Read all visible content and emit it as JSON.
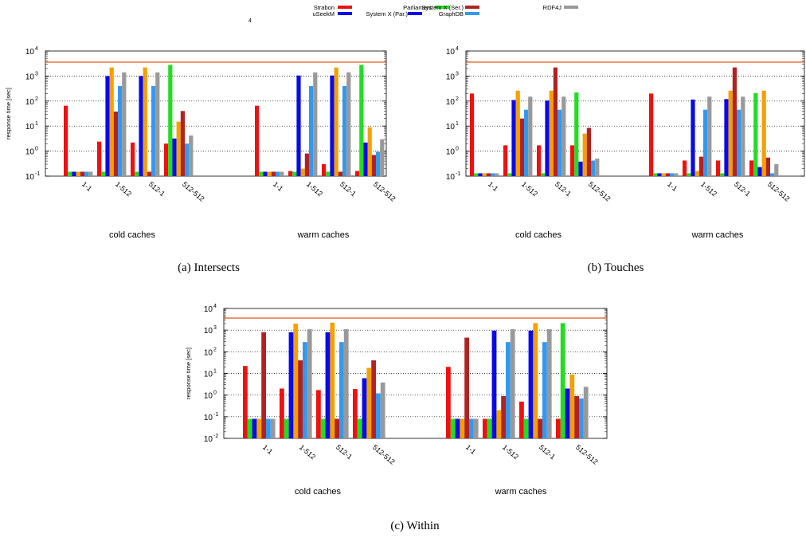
{
  "stray_mark": "4",
  "legend": [
    {
      "name": "Strabon",
      "color": "#ee1111"
    },
    {
      "name": "uSeekM",
      "color": "#0a0ae6"
    },
    {
      "name": "Parliament",
      "color": "#22dd22"
    },
    {
      "name": "System X (Par.)",
      "color": "#0a0ae6"
    },
    {
      "name": "System X (Ser.)",
      "color": "#b22222"
    },
    {
      "name": "GraphDB",
      "color": "#3399ee"
    },
    {
      "name": "RDF4J",
      "color": "#999999"
    }
  ],
  "chart_data": [
    {
      "type": "bar",
      "caption": "(a)  Intersects",
      "ylabel": "response time [sec]",
      "yscale": "log",
      "ylim": [
        0.1,
        10000
      ],
      "yticks": [
        {
          "v": 0.1,
          "b": "10",
          "e": "-1"
        },
        {
          "v": 1,
          "b": "10",
          "e": "0"
        },
        {
          "v": 10,
          "b": "10",
          "e": "1"
        },
        {
          "v": 100,
          "b": "10",
          "e": "2"
        },
        {
          "v": 1000,
          "b": "10",
          "e": "3"
        },
        {
          "v": 10000,
          "b": "10",
          "e": "4"
        }
      ],
      "timeout": 3600,
      "grid": true,
      "groups": [
        "cold caches",
        "warm caches"
      ],
      "categories": [
        "1-1",
        "1-512",
        "512-1",
        "512-512"
      ],
      "series": [
        {
          "name": "Strabon",
          "color": "#ee1111",
          "values": [
            [
              65,
              2.4,
              2.2,
              2
            ],
            [
              65,
              0.16,
              0.3,
              0.16
            ]
          ]
        },
        {
          "name": "Parliament",
          "color": "#22dd22",
          "values": [
            [
              0.15,
              0.15,
              0.15,
              2800
            ],
            [
              0.15,
              0.15,
              0.15,
              2800
            ]
          ]
        },
        {
          "name": "uSeekM",
          "color": "#0a0ae6",
          "values": [
            [
              0.15,
              1000,
              1000,
              3.2
            ],
            [
              0.15,
              1050,
              1050,
              2.2
            ]
          ]
        },
        {
          "name": "System X (Par.)",
          "color": "#f5a000",
          "values": [
            [
              0.15,
              2200,
              2200,
              15
            ],
            [
              0.15,
              0.2,
              2200,
              9
            ]
          ]
        },
        {
          "name": "System X (Ser.)",
          "color": "#b22222",
          "values": [
            [
              0.15,
              38,
              0.15,
              40
            ],
            [
              0.15,
              0.8,
              0.15,
              0.7
            ]
          ]
        },
        {
          "name": "GraphDB",
          "color": "#3399ee",
          "values": [
            [
              0.15,
              400,
              400,
              2
            ],
            [
              0.15,
              400,
              400,
              0.95
            ]
          ]
        },
        {
          "name": "RDF4J",
          "color": "#999999",
          "values": [
            [
              0.15,
              1400,
              1400,
              4.2
            ],
            [
              0.15,
              1400,
              1400,
              3
            ]
          ]
        }
      ]
    },
    {
      "type": "bar",
      "caption": "(b)  Touches",
      "ylabel": "",
      "yscale": "log",
      "ylim": [
        0.1,
        10000
      ],
      "yticks": [
        {
          "v": 0.1,
          "b": "10",
          "e": "-1"
        },
        {
          "v": 1,
          "b": "10",
          "e": "0"
        },
        {
          "v": 10,
          "b": "10",
          "e": "1"
        },
        {
          "v": 100,
          "b": "10",
          "e": "2"
        },
        {
          "v": 1000,
          "b": "10",
          "e": "3"
        },
        {
          "v": 10000,
          "b": "10",
          "e": "4"
        }
      ],
      "timeout": 3600,
      "grid": true,
      "groups": [
        "cold caches",
        "warm caches"
      ],
      "categories": [
        "1-1",
        "1-512",
        "512-1",
        "512-512"
      ],
      "series": [
        {
          "name": "Strabon",
          "color": "#ee1111",
          "values": [
            [
              200,
              1.7,
              1.7,
              1.7
            ],
            [
              200,
              0.42,
              0.42,
              0.42
            ]
          ]
        },
        {
          "name": "Parliament",
          "color": "#22dd22",
          "values": [
            [
              0.13,
              0.13,
              0.13,
              220
            ],
            [
              0.13,
              0.13,
              0.13,
              210
            ]
          ]
        },
        {
          "name": "uSeekM",
          "color": "#0a0ae6",
          "values": [
            [
              0.13,
              110,
              105,
              0.38
            ],
            [
              0.13,
              115,
              120,
              0.23
            ]
          ]
        },
        {
          "name": "System X (Par.)",
          "color": "#f5a000",
          "values": [
            [
              0.13,
              260,
              260,
              5
            ],
            [
              0.13,
              0.16,
              260,
              260
            ]
          ]
        },
        {
          "name": "System X (Ser.)",
          "color": "#b22222",
          "values": [
            [
              0.13,
              20,
              2200,
              8.5
            ],
            [
              0.13,
              0.6,
              2200,
              0.55
            ]
          ]
        },
        {
          "name": "GraphDB",
          "color": "#3399ee",
          "values": [
            [
              0.13,
              45,
              45,
              0.42
            ],
            [
              0.13,
              45,
              45,
              0.13
            ]
          ]
        },
        {
          "name": "RDF4J",
          "color": "#999999",
          "values": [
            [
              0.13,
              150,
              150,
              0.5
            ],
            [
              0.13,
              150,
              150,
              0.3
            ]
          ]
        }
      ]
    },
    {
      "type": "bar",
      "caption": "(c)  Within",
      "ylabel": "response time [sec]",
      "yscale": "log",
      "ylim": [
        0.01,
        10000
      ],
      "yticks": [
        {
          "v": 0.01,
          "b": "10",
          "e": "-2"
        },
        {
          "v": 0.1,
          "b": "10",
          "e": "-1"
        },
        {
          "v": 1,
          "b": "10",
          "e": "0"
        },
        {
          "v": 10,
          "b": "10",
          "e": "1"
        },
        {
          "v": 100,
          "b": "10",
          "e": "2"
        },
        {
          "v": 1000,
          "b": "10",
          "e": "3"
        },
        {
          "v": 10000,
          "b": "10",
          "e": "4"
        }
      ],
      "timeout": 3600,
      "grid": true,
      "groups": [
        "cold caches",
        "warm caches"
      ],
      "categories": [
        "1-1",
        "1-512",
        "512-1",
        "512-512"
      ],
      "series": [
        {
          "name": "Strabon",
          "color": "#ee1111",
          "values": [
            [
              22,
              2,
              1.7,
              1.9
            ],
            [
              20,
              0.08,
              0.5,
              0.08
            ]
          ]
        },
        {
          "name": "Parliament",
          "color": "#22dd22",
          "values": [
            [
              0.08,
              0.08,
              0.08,
              0.08
            ],
            [
              0.08,
              0.08,
              0.08,
              2100
            ]
          ]
        },
        {
          "name": "uSeekM",
          "color": "#0a0ae6",
          "values": [
            [
              0.08,
              800,
              800,
              6
            ],
            [
              0.08,
              950,
              950,
              2
            ]
          ]
        },
        {
          "name": "System X (Par.)",
          "color": "#f5a000",
          "values": [
            [
              0.08,
              2000,
              2200,
              18
            ],
            [
              0.08,
              0.2,
              2100,
              9
            ]
          ]
        },
        {
          "name": "System X (Ser.)",
          "color": "#b22222",
          "values": [
            [
              800,
              40,
              0.08,
              40
            ],
            [
              450,
              0.9,
              0.08,
              0.9
            ]
          ]
        },
        {
          "name": "GraphDB",
          "color": "#3399ee",
          "values": [
            [
              0.08,
              280,
              280,
              1.2
            ],
            [
              0.08,
              280,
              280,
              0.7
            ]
          ]
        },
        {
          "name": "RDF4J",
          "color": "#999999",
          "values": [
            [
              0.08,
              1100,
              1100,
              3.8
            ],
            [
              0.08,
              1100,
              1100,
              2.4
            ]
          ]
        }
      ]
    }
  ]
}
